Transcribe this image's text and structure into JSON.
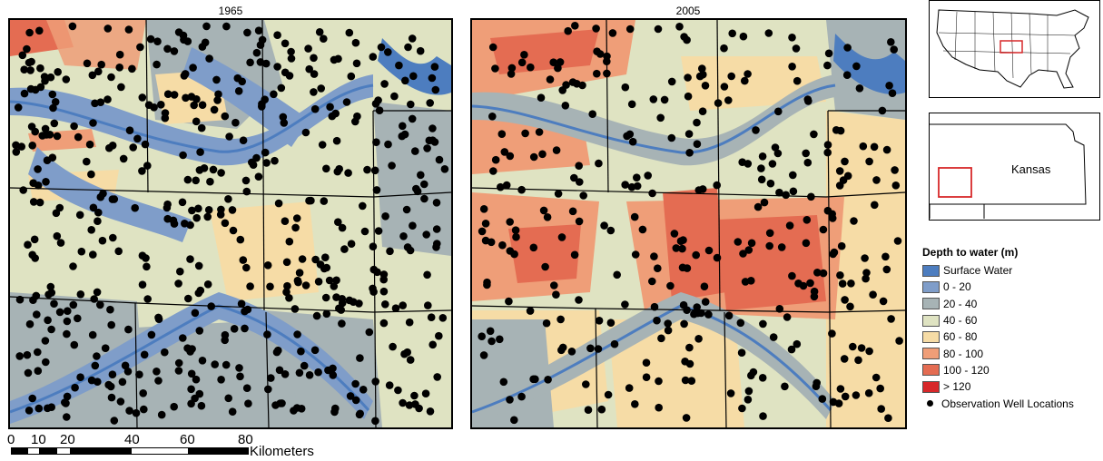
{
  "maps": [
    {
      "title": "1965"
    },
    {
      "title": "2005"
    }
  ],
  "colors": {
    "surface_water": "#4d7dbf",
    "d0_20": "#7f9dc9",
    "d20_40": "#a7b3b5",
    "d40_60": "#dfe3c2",
    "d60_80": "#f6dca6",
    "d80_100": "#ef9e78",
    "d100_120": "#e46c52",
    "gt120": "#d7282a",
    "well": "#000000"
  },
  "inset_state_label": "Kansas",
  "scale_bar": {
    "ticks": [
      "0",
      "10",
      "20",
      "40",
      "60",
      "80"
    ],
    "unit": "Kilometers"
  },
  "legend": {
    "title": "Depth to water (m)",
    "items": [
      {
        "label": "Surface Water",
        "color": "#4d7dbf"
      },
      {
        "label": "0 - 20",
        "color": "#7f9dc9"
      },
      {
        "label": "20 - 40",
        "color": "#a7b3b5"
      },
      {
        "label": "40 - 60",
        "color": "#dfe3c2"
      },
      {
        "label": "60 - 80",
        "color": "#f6dca6"
      },
      {
        "label": "80 - 100",
        "color": "#ef9e78"
      },
      {
        "label": "100 - 120",
        "color": "#e46c52"
      },
      {
        "label": "> 120",
        "color": "#d7282a"
      }
    ],
    "wells_label": "Observation Well Locations"
  }
}
